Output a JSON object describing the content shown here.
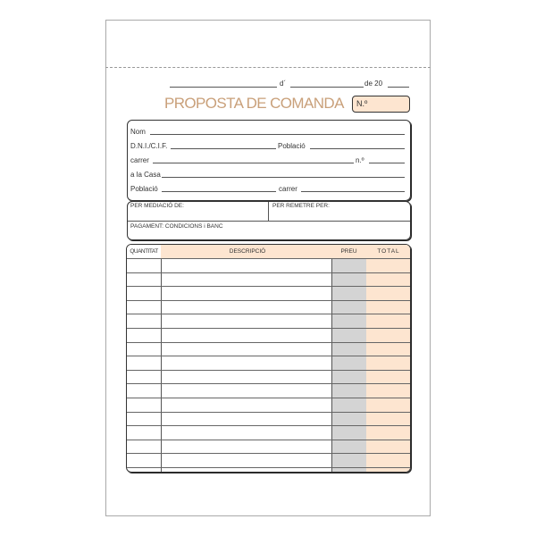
{
  "header": {
    "date_d": "d´",
    "date_de": "de 20",
    "title": "PROPOSTA DE COMANDA",
    "number_label": "N.º"
  },
  "client": {
    "nom": "Nom",
    "dni": "D.N.I./C.I.F.",
    "poblacio1": "Població",
    "carrer1": "carrer",
    "numero": "n.º",
    "casa": "a la Casa",
    "poblacio2": "Població",
    "carrer2": "carrer"
  },
  "terms": {
    "mediacio": "PER MEDIACIÓ DE:",
    "remetre": "PER REMETRE PER:",
    "pagament": "PAGAMENT: CONDICIONS i BANC"
  },
  "table": {
    "columns": [
      "QUANTITAT",
      "DESCRIPCIÓ",
      "PREU",
      "TOTAL"
    ],
    "row_count": 16
  },
  "colors": {
    "accent": "#c9a07a",
    "peach": "#fde5d0",
    "grey": "#d4d4d4"
  }
}
